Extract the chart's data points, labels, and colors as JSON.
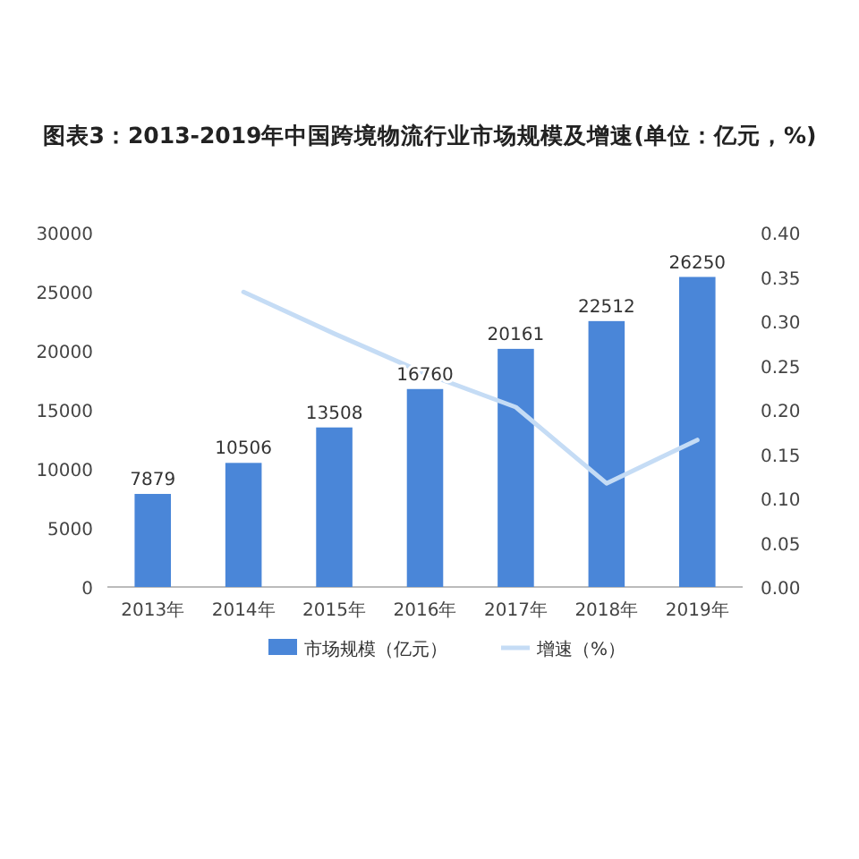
{
  "chart_data": {
    "type": "bar",
    "title": "图表3：2013-2019年中国跨境物流行业市场规模及增速(单位：亿元，%)",
    "categories": [
      "2013年",
      "2014年",
      "2015年",
      "2016年",
      "2017年",
      "2018年",
      "2019年"
    ],
    "series": [
      {
        "name": "市场规模（亿元）",
        "color": "#4a86d8",
        "values": [
          7879,
          10506,
          13508,
          16760,
          20161,
          22512,
          26250
        ],
        "value_labels": [
          "7879",
          "10506",
          "13508",
          "16760",
          "20161",
          "22512",
          "26250"
        ]
      },
      {
        "name": "增速（%）",
        "type": "line",
        "axis": "y2",
        "color": "#c5dcf5",
        "values": [
          null,
          0.333,
          0.286,
          0.241,
          0.203,
          0.117,
          0.166
        ]
      }
    ],
    "ylim": [
      0,
      30000
    ],
    "yticks": [
      0,
      5000,
      10000,
      15000,
      20000,
      25000,
      30000
    ],
    "y2lim": [
      0,
      0.4
    ],
    "y2ticks": [
      {
        "value": 0,
        "label": "0.00"
      },
      {
        "value": 0.05,
        "label": "0.05"
      },
      {
        "value": 0.1,
        "label": "0.10"
      },
      {
        "value": 0.15,
        "label": "0.15"
      },
      {
        "value": 0.2,
        "label": "0.20"
      },
      {
        "value": 0.25,
        "label": "0.25"
      },
      {
        "value": 0.3,
        "label": "0.30"
      },
      {
        "value": 0.35,
        "label": "0.35"
      },
      {
        "value": 0.4,
        "label": "0.40"
      }
    ],
    "legend": "bottom",
    "grid": false,
    "marker": "none"
  }
}
